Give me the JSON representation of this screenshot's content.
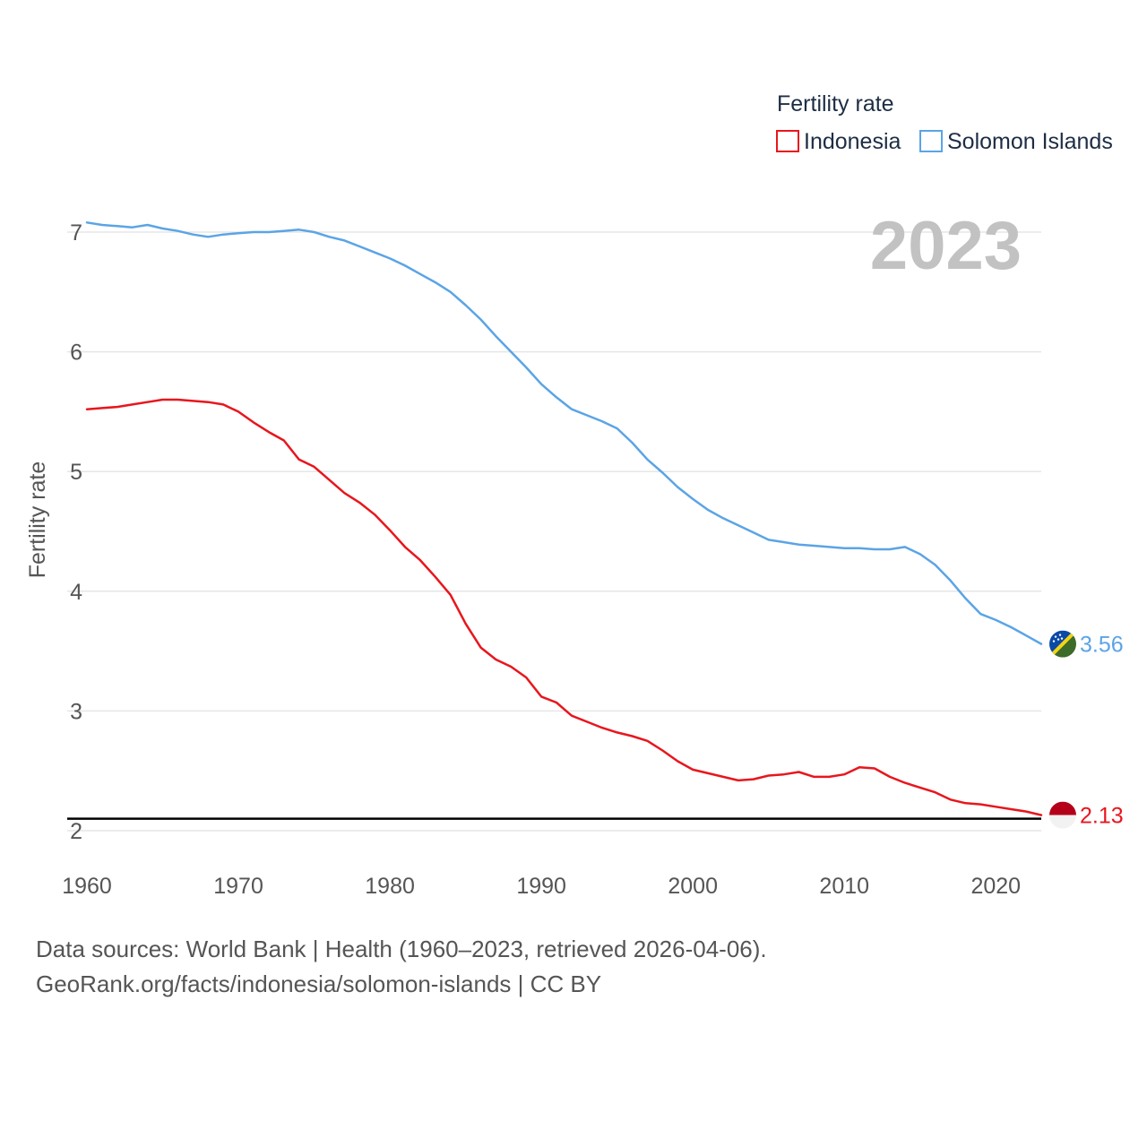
{
  "chart_data": {
    "type": "line",
    "legend_title": "Fertility rate",
    "ylabel": "Fertility rate",
    "xlabel": "",
    "year_label": "2023",
    "ylim": [
      2,
      7
    ],
    "xlim": [
      1960,
      2023
    ],
    "yticks": [
      "2",
      "3",
      "4",
      "5",
      "6",
      "7"
    ],
    "xticks": [
      "1960",
      "1970",
      "1980",
      "1990",
      "2000",
      "2010",
      "2020"
    ],
    "reference_line": 2.1,
    "x": [
      1960,
      1961,
      1962,
      1963,
      1964,
      1965,
      1966,
      1967,
      1968,
      1969,
      1970,
      1971,
      1972,
      1973,
      1974,
      1975,
      1976,
      1977,
      1978,
      1979,
      1980,
      1981,
      1982,
      1983,
      1984,
      1985,
      1986,
      1987,
      1988,
      1989,
      1990,
      1991,
      1992,
      1993,
      1994,
      1995,
      1996,
      1997,
      1998,
      1999,
      2000,
      2001,
      2002,
      2003,
      2004,
      2005,
      2006,
      2007,
      2008,
      2009,
      2010,
      2011,
      2012,
      2013,
      2014,
      2015,
      2016,
      2017,
      2018,
      2019,
      2020,
      2021,
      2022,
      2023
    ],
    "series": [
      {
        "name": "Indonesia",
        "color": "#e8161d",
        "end_label": "2.13",
        "values": [
          5.52,
          5.53,
          5.54,
          5.56,
          5.58,
          5.6,
          5.6,
          5.59,
          5.58,
          5.56,
          5.5,
          5.41,
          5.33,
          5.26,
          5.1,
          5.04,
          4.93,
          4.82,
          4.74,
          4.64,
          4.51,
          4.37,
          4.26,
          4.12,
          3.97,
          3.73,
          3.53,
          3.43,
          3.37,
          3.28,
          3.12,
          3.07,
          2.96,
          2.91,
          2.86,
          2.82,
          2.79,
          2.75,
          2.67,
          2.58,
          2.51,
          2.48,
          2.45,
          2.42,
          2.43,
          2.46,
          2.47,
          2.49,
          2.45,
          2.45,
          2.47,
          2.53,
          2.52,
          2.45,
          2.4,
          2.36,
          2.32,
          2.26,
          2.23,
          2.22,
          2.2,
          2.18,
          2.16,
          2.13
        ]
      },
      {
        "name": "Solomon Islands",
        "color": "#5ba4e6",
        "end_label": "3.56",
        "values": [
          7.08,
          7.06,
          7.05,
          7.04,
          7.06,
          7.03,
          7.01,
          6.98,
          6.96,
          6.98,
          6.99,
          7.0,
          7.0,
          7.01,
          7.02,
          7.0,
          6.96,
          6.93,
          6.88,
          6.83,
          6.78,
          6.72,
          6.65,
          6.58,
          6.5,
          6.39,
          6.27,
          6.13,
          6.0,
          5.87,
          5.73,
          5.62,
          5.52,
          5.47,
          5.42,
          5.36,
          5.24,
          5.1,
          4.99,
          4.87,
          4.77,
          4.68,
          4.61,
          4.55,
          4.49,
          4.43,
          4.41,
          4.39,
          4.38,
          4.37,
          4.36,
          4.36,
          4.35,
          4.35,
          4.37,
          4.31,
          4.22,
          4.09,
          3.94,
          3.81,
          3.76,
          3.7,
          3.63,
          3.56
        ]
      }
    ]
  },
  "source": {
    "line1": "Data sources: World Bank | Health (1960–2023, retrieved 2026-04-06).",
    "line2": "GeoRank.org/facts/indonesia/solomon-islands | CC BY"
  }
}
